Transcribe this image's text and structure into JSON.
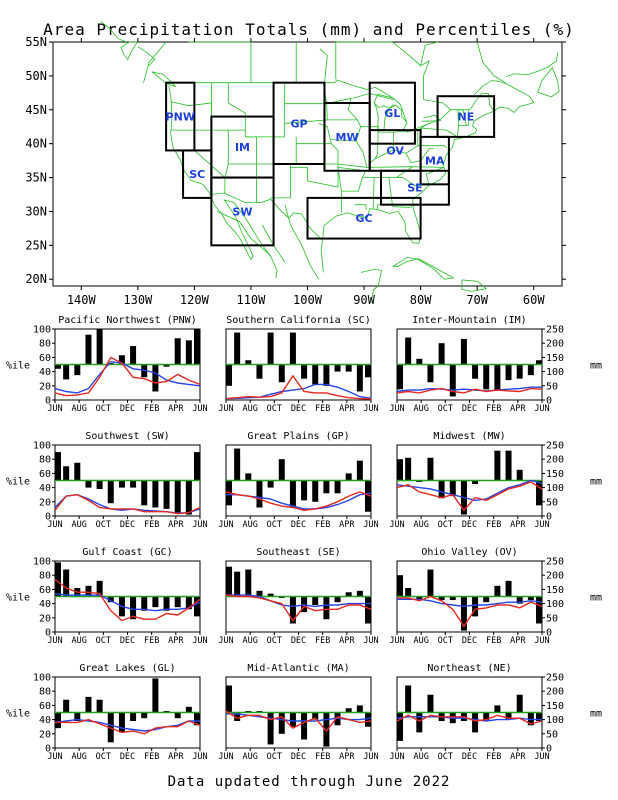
{
  "title": "Area Precipitation Totals (mm) and Percentiles (%)",
  "footer": "Data updated through June 2022",
  "map": {
    "lat_labels": [
      "55N",
      "50N",
      "45N",
      "40N",
      "35N",
      "30N",
      "25N",
      "20N"
    ],
    "lat_values": [
      55,
      50,
      45,
      40,
      35,
      30,
      25,
      20
    ],
    "lon_labels": [
      "140W",
      "130W",
      "120W",
      "110W",
      "100W",
      "90W",
      "80W",
      "70W",
      "60W"
    ],
    "lon_values": [
      -140,
      -130,
      -120,
      -110,
      -100,
      -90,
      -80,
      -70,
      -60
    ],
    "lon_range": [
      -145,
      -55
    ],
    "lat_range": [
      19,
      55
    ],
    "land_color": "#22c022",
    "box_color": "#000000",
    "label_color": "#1c3fe0",
    "regions": [
      {
        "code": "PNW",
        "lon": [
          -125,
          -120
        ],
        "lat": [
          39,
          49
        ]
      },
      {
        "code": "SC",
        "lon": [
          -122,
          -117
        ],
        "lat": [
          32,
          39
        ]
      },
      {
        "code": "IM",
        "lon": [
          -117,
          -106
        ],
        "lat": [
          35,
          44
        ]
      },
      {
        "code": "SW",
        "lon": [
          -117,
          -106
        ],
        "lat": [
          25,
          35
        ]
      },
      {
        "code": "GP",
        "lon": [
          -106,
          -97
        ],
        "lat": [
          37,
          49
        ]
      },
      {
        "code": "MW",
        "lon": [
          -97,
          -89
        ],
        "lat": [
          36,
          46
        ]
      },
      {
        "code": "GL",
        "lon": [
          -89,
          -81
        ],
        "lat": [
          40,
          49
        ]
      },
      {
        "code": "OV",
        "lon": [
          -89,
          -80
        ],
        "lat": [
          36,
          42
        ]
      },
      {
        "code": "NE",
        "lon": [
          -77,
          -67
        ],
        "lat": [
          41,
          47
        ]
      },
      {
        "code": "MA",
        "lon": [
          -80,
          -75
        ],
        "lat": [
          34,
          41
        ]
      },
      {
        "code": "SE",
        "lon": [
          -87,
          -75
        ],
        "lat": [
          31,
          36
        ]
      },
      {
        "code": "GC",
        "lon": [
          -100,
          -80
        ],
        "lat": [
          26,
          32
        ]
      }
    ]
  },
  "axis": {
    "left_label": "%ile",
    "right_label": "mm",
    "pct_ticks": [
      "0",
      "20",
      "40",
      "60",
      "80",
      "100"
    ],
    "mm_ticks": [
      "0",
      "50",
      "100",
      "150",
      "200",
      "250"
    ],
    "months": [
      "JUN",
      "AUG",
      "OCT",
      "DEC",
      "FEB",
      "APR",
      "JUN"
    ]
  },
  "colors": {
    "bar": "#000000",
    "median": "#22a022",
    "red": "#e8281e",
    "blue": "#2545e8"
  },
  "chart_data": [
    {
      "type": "bar",
      "title": "Pacific Northwest (PNW)",
      "percentile_deviation": [
        -6,
        -21,
        -15,
        42,
        50,
        2,
        13,
        26,
        -18,
        -38,
        -3,
        37,
        34,
        50
      ],
      "red_mm": [
        25,
        15,
        18,
        25,
        80,
        150,
        130,
        80,
        75,
        60,
        65,
        90,
        70,
        55
      ],
      "blue_mm": [
        40,
        30,
        25,
        40,
        90,
        135,
        130,
        110,
        105,
        95,
        70,
        60,
        55,
        50
      ]
    },
    {
      "type": "bar",
      "title": "Southern California (SC)",
      "percentile_deviation": [
        -30,
        45,
        6,
        -20,
        45,
        -25,
        45,
        -20,
        -28,
        -30,
        -10,
        -10,
        -38,
        -18
      ],
      "red_mm": [
        5,
        8,
        12,
        10,
        12,
        25,
        85,
        30,
        25,
        25,
        15,
        8,
        5,
        3
      ],
      "blue_mm": [
        5,
        6,
        8,
        10,
        20,
        30,
        35,
        40,
        55,
        55,
        45,
        30,
        12,
        6
      ]
    },
    {
      "type": "bar",
      "title": "Inter-Mountain (IM)",
      "percentile_deviation": [
        -35,
        38,
        8,
        -25,
        30,
        -45,
        36,
        -20,
        -35,
        -36,
        -22,
        -20,
        -15,
        6
      ],
      "red_mm": [
        25,
        30,
        25,
        35,
        40,
        30,
        25,
        38,
        30,
        35,
        32,
        30,
        40,
        38
      ],
      "blue_mm": [
        30,
        35,
        35,
        40,
        38,
        35,
        38,
        35,
        32,
        35,
        38,
        40,
        45,
        45
      ]
    },
    {
      "type": "bar",
      "title": "Southwest (SW)",
      "percentile_deviation": [
        40,
        20,
        25,
        -10,
        -12,
        -32,
        -10,
        -10,
        -35,
        -38,
        -40,
        -45,
        -48,
        40
      ],
      "red_mm": [
        20,
        70,
        75,
        55,
        30,
        25,
        25,
        25,
        15,
        15,
        15,
        8,
        12,
        30
      ],
      "blue_mm": [
        30,
        70,
        75,
        60,
        40,
        25,
        20,
        25,
        20,
        18,
        15,
        10,
        12,
        25
      ]
    },
    {
      "type": "bar",
      "title": "Great Plains (GP)",
      "percentile_deviation": [
        -35,
        45,
        10,
        -38,
        -10,
        30,
        -38,
        -28,
        -30,
        -18,
        -18,
        10,
        28,
        -44
      ],
      "red_mm": [
        85,
        75,
        70,
        60,
        45,
        35,
        30,
        20,
        25,
        35,
        50,
        70,
        85,
        70
      ],
      "blue_mm": [
        75,
        75,
        70,
        65,
        60,
        45,
        35,
        25,
        25,
        30,
        40,
        55,
        75,
        80
      ]
    },
    {
      "type": "bar",
      "title": "Midwest (MW)",
      "percentile_deviation": [
        30,
        32,
        -2,
        32,
        -25,
        -22,
        -48,
        -5,
        0,
        42,
        42,
        15,
        0,
        -35
      ],
      "red_mm": [
        100,
        110,
        85,
        75,
        65,
        75,
        20,
        65,
        55,
        75,
        95,
        105,
        120,
        95
      ],
      "blue_mm": [
        110,
        105,
        100,
        95,
        85,
        75,
        65,
        55,
        60,
        80,
        100,
        110,
        125,
        115
      ]
    },
    {
      "type": "bar",
      "title": "Gulf Coast (GC)",
      "percentile_deviation": [
        48,
        38,
        12,
        15,
        22,
        -8,
        -28,
        -32,
        -20,
        -15,
        -20,
        -15,
        -18,
        -28
      ],
      "red_mm": [
        185,
        155,
        140,
        140,
        135,
        75,
        40,
        55,
        45,
        45,
        65,
        60,
        85,
        115
      ],
      "blue_mm": [
        135,
        130,
        130,
        130,
        130,
        110,
        90,
        80,
        80,
        75,
        80,
        80,
        85,
        105
      ]
    },
    {
      "type": "bar",
      "title": "Southeast (SE)",
      "percentile_deviation": [
        42,
        35,
        38,
        8,
        4,
        -2,
        -38,
        -22,
        -12,
        -32,
        -8,
        6,
        8,
        -38
      ],
      "red_mm": [
        130,
        125,
        125,
        120,
        110,
        100,
        40,
        90,
        75,
        80,
        80,
        95,
        95,
        80
      ],
      "blue_mm": [
        130,
        130,
        130,
        125,
        110,
        95,
        90,
        95,
        90,
        95,
        95,
        100,
        100,
        100
      ]
    },
    {
      "type": "bar",
      "title": "Ohio Valley (OV)",
      "percentile_deviation": [
        30,
        12,
        -4,
        38,
        -5,
        -5,
        -48,
        -28,
        -8,
        15,
        22,
        -10,
        -5,
        -38
      ],
      "red_mm": [
        120,
        120,
        110,
        125,
        110,
        80,
        20,
        80,
        85,
        95,
        95,
        85,
        105,
        90
      ],
      "blue_mm": [
        115,
        115,
        115,
        110,
        100,
        95,
        90,
        95,
        95,
        100,
        105,
        105,
        110,
        105
      ]
    },
    {
      "type": "bar",
      "title": "Great Lakes (GL)",
      "percentile_deviation": [
        -22,
        18,
        -12,
        22,
        18,
        -42,
        -28,
        -12,
        -8,
        48,
        2,
        -8,
        8,
        -18
      ],
      "red_mm": [
        90,
        90,
        90,
        100,
        85,
        70,
        55,
        60,
        50,
        70,
        75,
        75,
        95,
        80
      ],
      "blue_mm": [
        90,
        95,
        100,
        95,
        90,
        80,
        70,
        65,
        60,
        65,
        75,
        80,
        95,
        95
      ]
    },
    {
      "type": "bar",
      "title": "Mid-Atlantic (MA)",
      "percentile_deviation": [
        38,
        -12,
        2,
        2,
        -45,
        -30,
        -20,
        -38,
        -10,
        -48,
        -18,
        6,
        10,
        -20
      ],
      "red_mm": [
        130,
        105,
        115,
        115,
        100,
        110,
        70,
        90,
        105,
        60,
        110,
        100,
        90,
        95
      ],
      "blue_mm": [
        120,
        120,
        115,
        110,
        105,
        100,
        95,
        95,
        95,
        100,
        105,
        100,
        100,
        105
      ]
    },
    {
      "type": "bar",
      "title": "Northeast (NE)",
      "percentile_deviation": [
        -40,
        38,
        -28,
        25,
        -12,
        -15,
        -12,
        -28,
        -12,
        10,
        -10,
        25,
        -18,
        -12
      ],
      "red_mm": [
        95,
        115,
        95,
        115,
        110,
        110,
        110,
        95,
        100,
        115,
        105,
        105,
        85,
        95
      ],
      "blue_mm": [
        105,
        110,
        110,
        110,
        110,
        105,
        105,
        100,
        95,
        100,
        100,
        105,
        100,
        100
      ]
    }
  ]
}
